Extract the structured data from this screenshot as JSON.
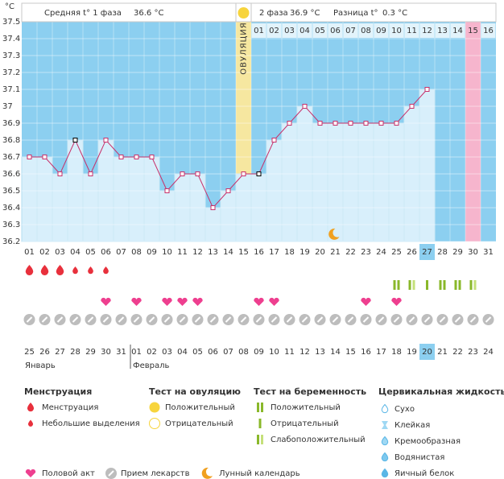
{
  "chart_data": {
    "type": "line",
    "y_unit": "°C",
    "header": {
      "phase1_label": "Средняя t° 1 фаза",
      "phase1_value": "36.6 °C",
      "phase2_label": "2 фаза",
      "phase2_value": "36.9 °C",
      "diff_label": "Разница t°",
      "diff_value": "0.3 °C"
    },
    "ovulation_label": "ОВУЛЯЦИЯ",
    "ovulation_category": "15",
    "pink_category": "30",
    "today_category": "27",
    "categories": [
      "01",
      "02",
      "03",
      "04",
      "05",
      "06",
      "07",
      "08",
      "09",
      "10",
      "11",
      "12",
      "13",
      "14",
      "15",
      "16",
      "17",
      "18",
      "19",
      "20",
      "21",
      "22",
      "23",
      "24",
      "25",
      "26",
      "27",
      "28",
      "29",
      "30",
      "31"
    ],
    "phase_days": [
      null,
      null,
      null,
      null,
      null,
      null,
      null,
      null,
      null,
      null,
      null,
      null,
      null,
      null,
      null,
      "01",
      "02",
      "03",
      "04",
      "05",
      "06",
      "07",
      "08",
      "09",
      "10",
      "11",
      "12",
      "13",
      "14",
      "15",
      "16"
    ],
    "values": [
      36.7,
      36.7,
      36.6,
      36.8,
      36.6,
      36.8,
      36.7,
      36.7,
      36.7,
      36.5,
      36.6,
      36.6,
      36.4,
      36.5,
      36.6,
      36.6,
      36.8,
      36.9,
      37.0,
      36.9,
      36.9,
      36.9,
      36.9,
      36.9,
      36.9,
      37.0,
      37.1,
      null,
      null,
      null,
      null
    ],
    "color": "#c8306a",
    "special_points": [
      "04",
      "16"
    ],
    "ylim": [
      36.2,
      37.5
    ],
    "yticks": [
      36.2,
      36.3,
      36.4,
      36.5,
      36.6,
      36.7,
      36.8,
      36.9,
      {
        "value": 37.0,
        "label": "37"
      },
      37.1,
      37.2,
      37.3,
      37.4,
      37.5
    ],
    "grid": true,
    "moon_category": "21",
    "menstruation": [
      "heavy",
      "heavy",
      "heavy",
      "light",
      "light",
      "light",
      null,
      null,
      null,
      null,
      null,
      null,
      null,
      null,
      null,
      null,
      null,
      null,
      null,
      null,
      null,
      null,
      null,
      null,
      null,
      null,
      null,
      null,
      null,
      null,
      null
    ],
    "pregnancy_test": [
      null,
      null,
      null,
      null,
      null,
      null,
      null,
      null,
      null,
      null,
      null,
      null,
      null,
      null,
      null,
      null,
      null,
      null,
      null,
      null,
      null,
      null,
      null,
      null,
      "positive",
      "weak",
      "negative",
      "positive",
      "positive",
      "weak",
      null
    ],
    "intercourse": [
      "06",
      "08",
      "10",
      "11",
      "12",
      "16",
      "17",
      "23",
      "25"
    ],
    "medication": "all",
    "dates": [
      "25",
      "26",
      "27",
      "28",
      "29",
      "30",
      "31",
      "01",
      "02",
      "03",
      "04",
      "05",
      "06",
      "07",
      "08",
      "09",
      "10",
      "11",
      "12",
      "13",
      "14",
      "15",
      "16",
      "17",
      "18",
      "19",
      "20",
      "21",
      "22",
      "23",
      "24"
    ],
    "holiday_dates": [
      "28",
      "29",
      "04",
      "05",
      "11",
      "12",
      "18",
      "19"
    ],
    "highlighted_date": "20",
    "months": [
      {
        "label": "Январь",
        "start": "25"
      },
      {
        "label": "Февраль",
        "start": "01"
      }
    ],
    "legend": {
      "menstruation": {
        "title": "Менструация",
        "items": [
          "Менструация",
          "Небольшие выделения"
        ]
      },
      "ovulation_test": {
        "title": "Тест на овуляцию",
        "items": [
          "Положительный",
          "Отрицательный"
        ]
      },
      "pregnancy_test": {
        "title": "Тест на беременность",
        "items": [
          "Положительный",
          "Отрицательный",
          "Слабоположительный"
        ]
      },
      "cervical_fluid": {
        "title": "Цервикальная жидкость",
        "items": [
          "Сухо",
          "Клейкая",
          "Кремообразная",
          "Водянистая",
          "Яичный белок"
        ]
      },
      "other": [
        "Половой акт",
        "Прием лекарств",
        "Лунный календарь"
      ]
    }
  }
}
